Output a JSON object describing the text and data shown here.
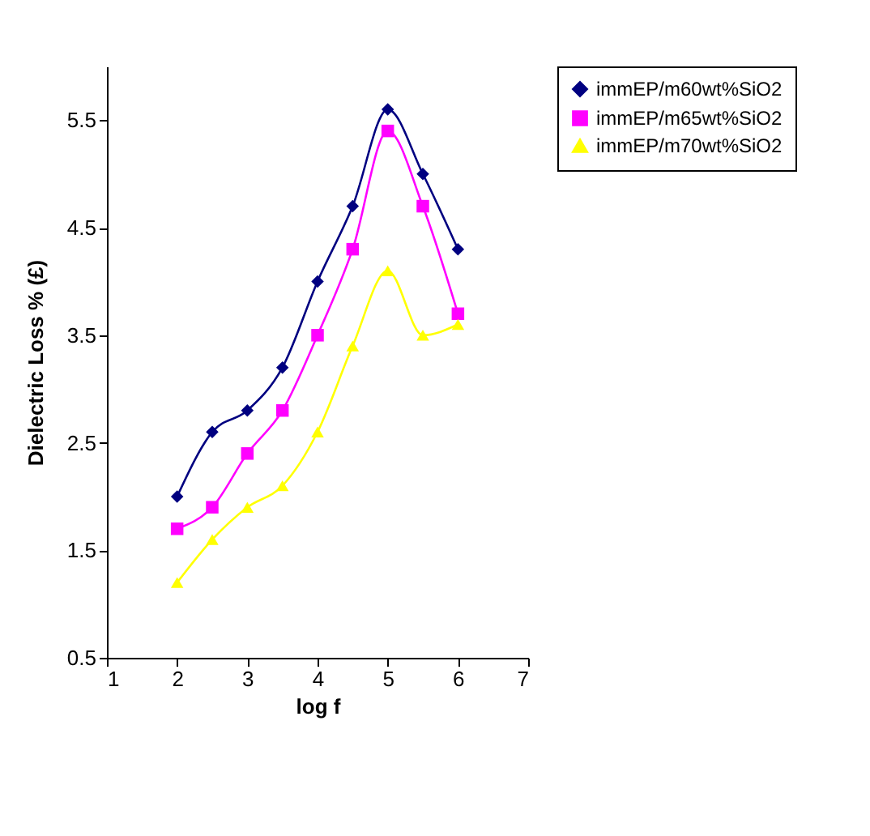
{
  "chart_data": {
    "type": "line",
    "xlabel": "log f",
    "ylabel": "Dielectric Loss % (£)",
    "x": [
      2,
      2.5,
      3,
      3.5,
      4,
      4.5,
      5,
      5.5,
      6
    ],
    "series": [
      {
        "name": "immEP/m60wt%SiO2",
        "color": "#000080",
        "marker": "diamond",
        "values": [
          2.0,
          2.6,
          2.8,
          3.2,
          4.0,
          4.7,
          5.6,
          5.0,
          4.3
        ]
      },
      {
        "name": "immEP/m65wt%SiO2",
        "color": "#ff00ff",
        "marker": "square",
        "values": [
          1.7,
          1.9,
          2.4,
          2.8,
          3.5,
          4.3,
          5.4,
          4.7,
          3.7
        ]
      },
      {
        "name": "immEP/m70wt%SiO2",
        "color": "#ffff00",
        "marker": "triangle",
        "values": [
          1.2,
          1.6,
          1.9,
          2.1,
          2.6,
          3.4,
          4.1,
          3.5,
          3.6
        ]
      }
    ],
    "xlim": [
      1,
      7
    ],
    "xticks": [
      1,
      2,
      3,
      4,
      5,
      6,
      7
    ],
    "ylim": [
      0.5,
      6.0
    ],
    "yticks": [
      0.5,
      1.5,
      2.5,
      3.5,
      4.5,
      5.5
    ],
    "grid": false,
    "legend": "right",
    "line_style": "solid"
  }
}
